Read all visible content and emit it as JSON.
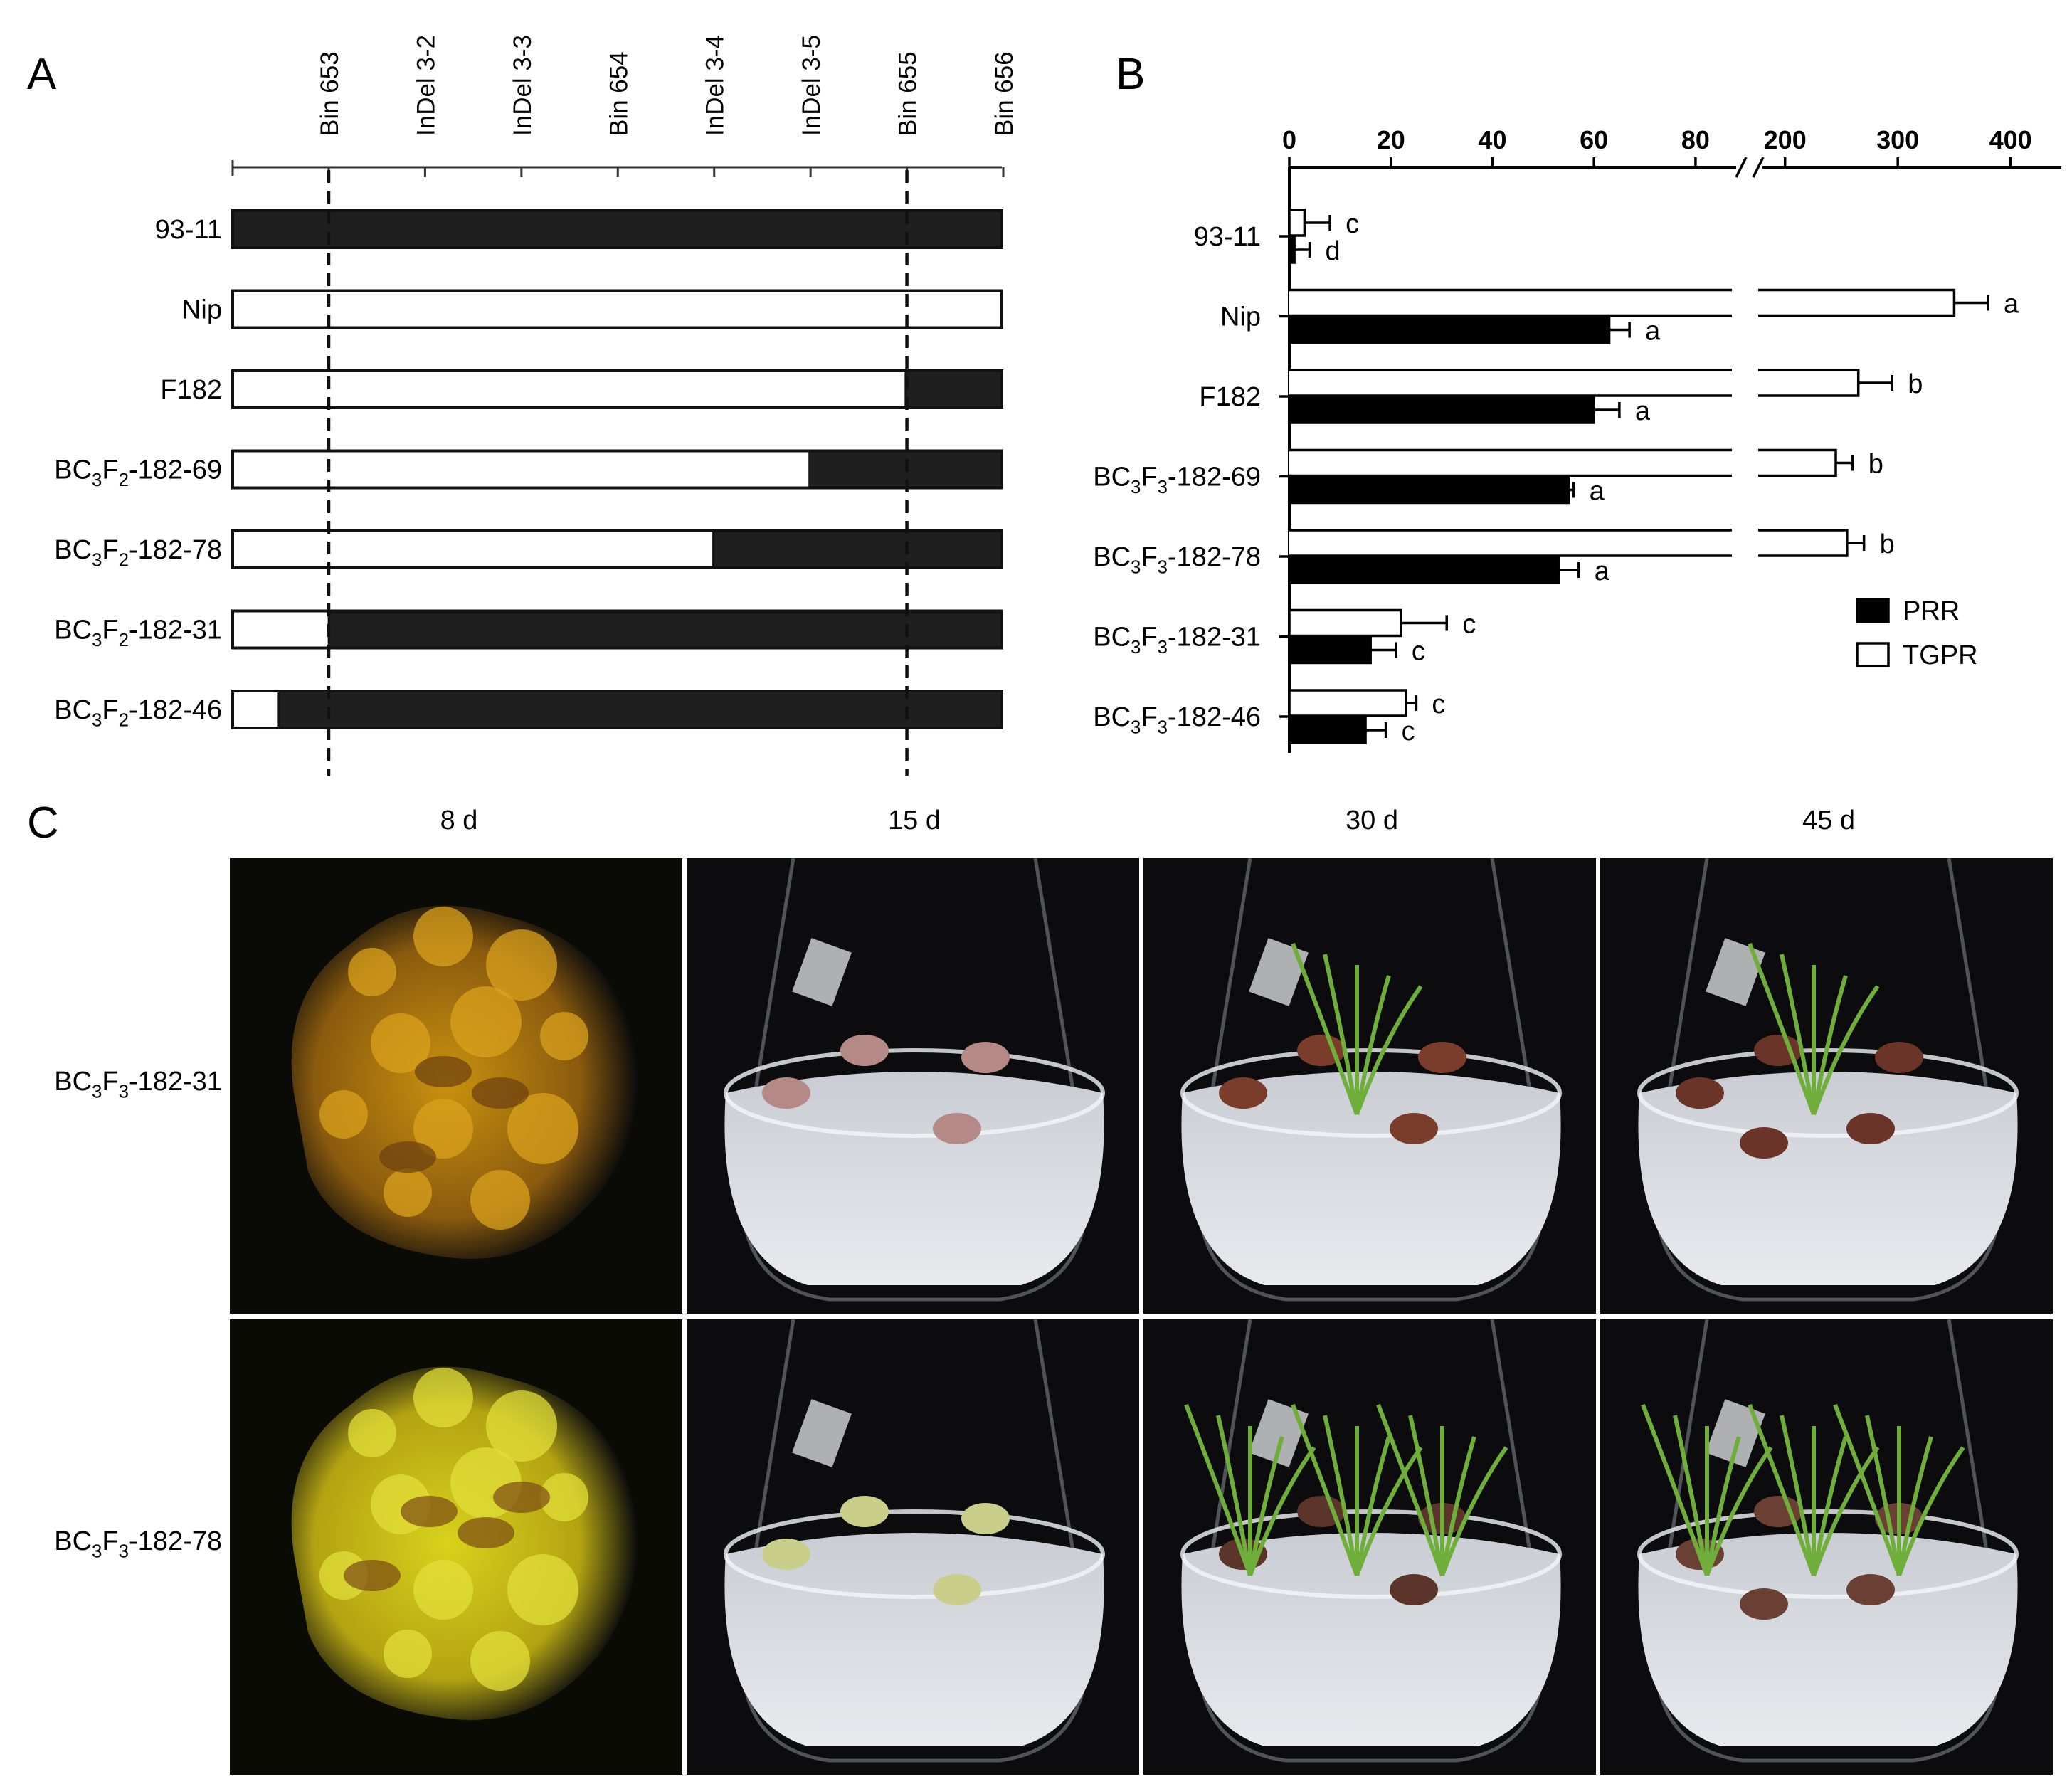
{
  "panel_letters": [
    "A",
    "B",
    "C"
  ],
  "panel_a": {
    "markers": [
      "Bin 653",
      "InDel 3-2",
      "InDel 3-3",
      "Bin 654",
      "InDel 3-4",
      "InDel 3-5",
      "Bin 655",
      "Bin 656"
    ],
    "genotypes": [
      {
        "base": "93-11",
        "sub1": "",
        "mid": "",
        "sub2": "",
        "tail": "",
        "nip_fraction": 0.0
      },
      {
        "base": "Nip",
        "sub1": "",
        "mid": "",
        "sub2": "",
        "tail": "",
        "nip_fraction": 1.0
      },
      {
        "base": "F182",
        "sub1": "",
        "mid": "",
        "sub2": "",
        "tail": "",
        "nip_fraction": 0.875
      },
      {
        "base": "BC",
        "sub1": "3",
        "mid": "F",
        "sub2": "2",
        "tail": "-182-69",
        "nip_fraction": 0.75
      },
      {
        "base": "BC",
        "sub1": "3",
        "mid": "F",
        "sub2": "2",
        "tail": "-182-78",
        "nip_fraction": 0.625
      },
      {
        "base": "BC",
        "sub1": "3",
        "mid": "F",
        "sub2": "2",
        "tail": "-182-31",
        "nip_fraction": 0.125
      },
      {
        "base": "BC",
        "sub1": "3",
        "mid": "F",
        "sub2": "2",
        "tail": "-182-46",
        "nip_fraction": 0.06
      }
    ],
    "colors": {
      "nip": "#ffffff",
      "93-11": "#1f1f1f"
    }
  },
  "chart_data": {
    "type": "bar",
    "orientation": "horizontal",
    "categories": [
      {
        "base": "93-11",
        "sub1": "",
        "mid": "",
        "sub2": "",
        "tail": ""
      },
      {
        "base": "Nip",
        "sub1": "",
        "mid": "",
        "sub2": "",
        "tail": ""
      },
      {
        "base": "F182",
        "sub1": "",
        "mid": "",
        "sub2": "",
        "tail": ""
      },
      {
        "base": "BC",
        "sub1": "3",
        "mid": "F",
        "sub2": "3",
        "tail": "-182-69"
      },
      {
        "base": "BC",
        "sub1": "3",
        "mid": "F",
        "sub2": "3",
        "tail": "-182-78"
      },
      {
        "base": "BC",
        "sub1": "3",
        "mid": "F",
        "sub2": "3",
        "tail": "-182-31"
      },
      {
        "base": "BC",
        "sub1": "3",
        "mid": "F",
        "sub2": "3",
        "tail": "-182-46"
      }
    ],
    "series": [
      {
        "name": "PRR",
        "color": "#000000",
        "values": [
          1,
          63,
          60,
          55,
          53,
          16,
          15
        ],
        "errors": [
          3,
          4,
          5,
          1,
          4,
          5,
          4
        ],
        "letters": [
          "d",
          "a",
          "a",
          "a",
          "a",
          "c",
          "c"
        ]
      },
      {
        "name": "TGPR",
        "color": "#ffffff",
        "values": [
          3,
          350,
          265,
          245,
          255,
          22,
          23
        ],
        "errors": [
          5,
          30,
          30,
          15,
          15,
          9,
          2
        ],
        "letters": [
          "c",
          "a",
          "b",
          "b",
          "b",
          "c",
          "c"
        ]
      }
    ],
    "x_axis": {
      "broken": true,
      "segment1": {
        "range": [
          0,
          88
        ],
        "ticks": [
          "0",
          "20",
          "40",
          "60",
          "80"
        ],
        "tick_values": [
          0,
          20,
          40,
          60,
          80
        ]
      },
      "segment2": {
        "range": [
          180,
          445
        ],
        "ticks": [
          "200",
          "300",
          "400"
        ],
        "tick_values": [
          200,
          300,
          400
        ]
      }
    },
    "legend": {
      "position": "right",
      "items": [
        "PRR",
        "TGPR"
      ]
    },
    "grid": false
  },
  "panel_c": {
    "days": [
      "8 d",
      "15 d",
      "30 d",
      "45 d"
    ],
    "rows": [
      {
        "base": "BC",
        "sub1": "3",
        "mid": "F",
        "sub2": "3",
        "tail": "-182-31"
      },
      {
        "base": "BC",
        "sub1": "3",
        "mid": "F",
        "sub2": "3",
        "tail": "-182-78"
      }
    ],
    "photos": [
      {
        "row": 0,
        "col": 0,
        "subject": "callus",
        "tint": "#c9920f",
        "pieces": 0,
        "plantlet": 0
      },
      {
        "row": 0,
        "col": 1,
        "subject": "flask",
        "tint": "#b58a86",
        "pieces": 4,
        "plantlet": 0
      },
      {
        "row": 0,
        "col": 2,
        "subject": "flask",
        "tint": "#7a3d2c",
        "pieces": 4,
        "plantlet": 1
      },
      {
        "row": 0,
        "col": 3,
        "subject": "flask",
        "tint": "#6a3528",
        "pieces": 5,
        "plantlet": 1
      },
      {
        "row": 1,
        "col": 0,
        "subject": "callus",
        "tint": "#d8d21c",
        "pieces": 0,
        "plantlet": 0
      },
      {
        "row": 1,
        "col": 1,
        "subject": "flask",
        "tint": "#c9cf8a",
        "pieces": 4,
        "plantlet": 0
      },
      {
        "row": 1,
        "col": 2,
        "subject": "flask",
        "tint": "#5b3529",
        "pieces": 4,
        "plantlet": 3
      },
      {
        "row": 1,
        "col": 3,
        "subject": "flask",
        "tint": "#6b4034",
        "pieces": 5,
        "plantlet": 3
      }
    ]
  }
}
